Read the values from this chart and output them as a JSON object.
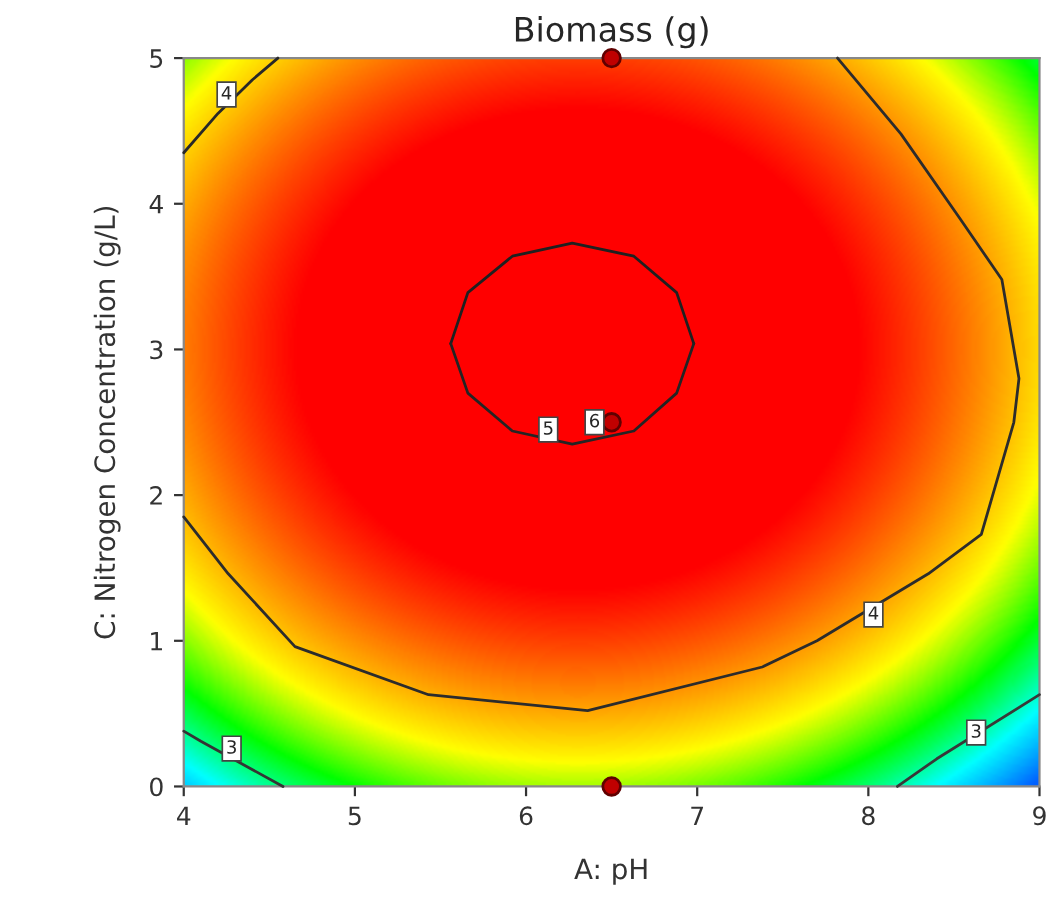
{
  "chart_data": {
    "type": "line",
    "title": "Biomass (g)",
    "xlabel": "A: pH",
    "ylabel": "C: Nitrogen Concentration (g/L)",
    "xlim": [
      4,
      9
    ],
    "ylim": [
      0,
      5
    ],
    "xticks": [
      4,
      5,
      6,
      7,
      8,
      9
    ],
    "yticks": [
      0,
      1,
      2,
      3,
      4,
      5
    ],
    "grid": false,
    "legend": false,
    "marker": "none",
    "line_style": "solid",
    "series": [
      {
        "color": "#202020",
        "x": [
          5.56,
          5.66,
          5.92,
          6.27,
          6.63,
          6.88,
          6.98
        ],
        "values": [
          3.04,
          3.39,
          3.64,
          3.73,
          3.64,
          3.39,
          3.04
        ]
      },
      {
        "color": "#242424",
        "x": [
          5.56,
          5.66,
          5.92,
          6.27,
          6.63,
          6.88,
          6.98
        ],
        "values": [
          3.04,
          2.7,
          2.44,
          2.35,
          2.44,
          2.7,
          3.04
        ]
      },
      {
        "color": "#282828",
        "x": [
          4,
          4.2,
          4.4,
          4.55
        ],
        "values": [
          4.35,
          4.62,
          4.85,
          5
        ]
      },
      {
        "color": "#2c2c2c",
        "x": [
          4,
          4.26,
          4.65,
          5.43,
          6.36,
          7.38,
          7.7,
          8.35,
          8.66,
          8.85,
          8.88,
          8.78,
          8.54,
          8.19,
          7.82
        ],
        "values": [
          1.85,
          1.46,
          0.96,
          0.63,
          0.52,
          0.82,
          1.0,
          1.46,
          1.73,
          2.5,
          2.8,
          3.48,
          3.89,
          4.48,
          5
        ]
      },
      {
        "color": "#343434",
        "x": [
          4,
          4.1,
          4.58
        ],
        "values": [
          0.38,
          0.31,
          0
        ]
      },
      {
        "color": "#383838",
        "x": [
          8.17,
          8.4,
          9
        ],
        "values": [
          0,
          0.19,
          0.63
        ]
      },
      {
        "type": "scatter",
        "marker": "circle",
        "color": "#c00000",
        "x": [
          6.5,
          6.5,
          6.5
        ],
        "values": [
          5,
          2.5,
          0
        ]
      }
    ],
    "annotations": [
      {
        "text": "4",
        "x": 4.25,
        "y": 4.75
      },
      {
        "text": "5",
        "x": 6.13,
        "y": 2.45
      },
      {
        "text": "4",
        "x": 8.03,
        "y": 1.18
      },
      {
        "text": "3",
        "x": 4.28,
        "y": 0.26
      },
      {
        "text": "3",
        "x": 8.63,
        "y": 0.37
      },
      {
        "text": "6",
        "x": 6.4,
        "y": 2.5
      }
    ]
  }
}
